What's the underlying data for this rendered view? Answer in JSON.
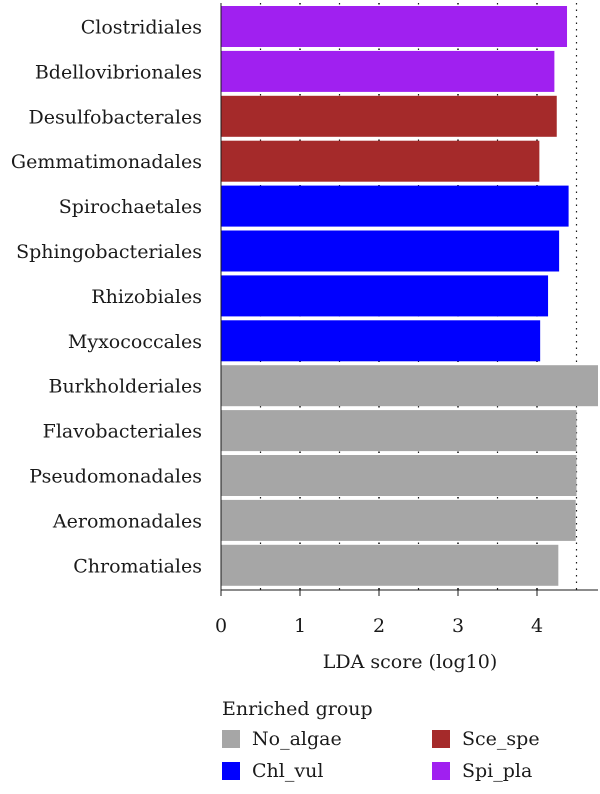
{
  "chart_data": {
    "type": "bar",
    "orientation": "horizontal",
    "categories": [
      "Clostridiales",
      "Bdellovibrionales",
      "Desulfobacterales",
      "Gemmatimonadales",
      "Spirochaetales",
      "Sphingobacteriales",
      "Rhizobiales",
      "Myxococcales",
      "Burkholderiales",
      "Flavobacteriales",
      "Pseudomonadales",
      "Aeromonadales",
      "Chromatiales"
    ],
    "values": [
      4.38,
      4.22,
      4.25,
      4.03,
      4.4,
      4.28,
      4.14,
      4.04,
      4.85,
      4.5,
      4.5,
      4.49,
      4.27
    ],
    "groups": [
      "Spi_pla",
      "Spi_pla",
      "Sce_spe",
      "Sce_spe",
      "Chl_vul",
      "Chl_vul",
      "Chl_vul",
      "Chl_vul",
      "No_algae",
      "No_algae",
      "No_algae",
      "No_algae",
      "No_algae"
    ],
    "xlabel": "LDA score (log10)",
    "xlim": [
      0,
      4.8
    ],
    "xticks": [
      "0",
      "1",
      "2",
      "3",
      "4"
    ],
    "legend": {
      "title": "Enriched group",
      "items": [
        {
          "name": "No_algae",
          "color": "#a6a6a6"
        },
        {
          "name": "Sce_spe",
          "color": "#a52a2a"
        },
        {
          "name": "Chl_vul",
          "color": "#0000ff"
        },
        {
          "name": "Spi_pla",
          "color": "#a020f0"
        }
      ],
      "placement": "bottom"
    },
    "grid": true
  }
}
